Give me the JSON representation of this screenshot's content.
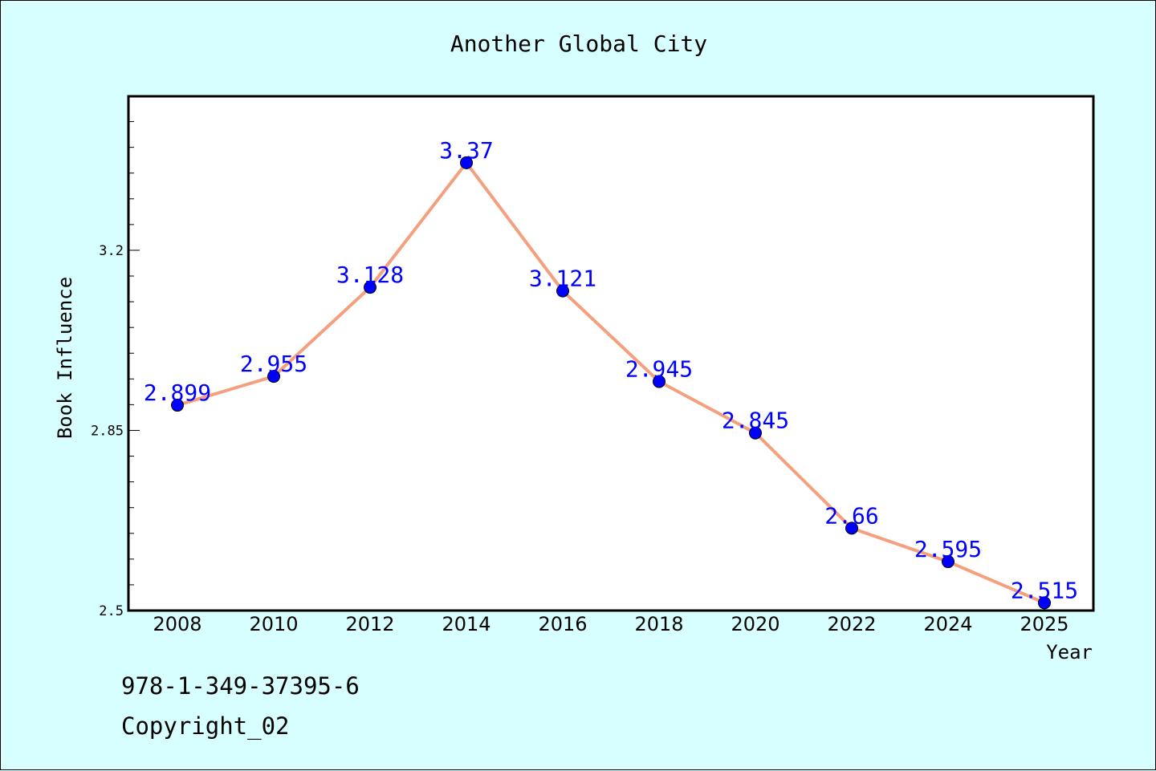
{
  "chart_data": {
    "type": "line",
    "title": "Another Global City",
    "xlabel": "Year",
    "ylabel": "Book Influence",
    "categories": [
      "2008",
      "2010",
      "2012",
      "2014",
      "2016",
      "2018",
      "2020",
      "2022",
      "2024",
      "2025"
    ],
    "series": [
      {
        "values": [
          2.899,
          2.955,
          3.128,
          3.37,
          3.121,
          2.945,
          2.845,
          2.66,
          2.595,
          2.515
        ]
      }
    ],
    "data_labels": [
      "2.899",
      "2.955",
      "3.128",
      "3.37",
      "3.121",
      "2.945",
      "2.845",
      "2.66",
      "2.595",
      "2.515"
    ],
    "y_ticks": [
      2.5,
      2.85,
      3.2
    ],
    "y_tick_labels": [
      "2.5",
      "2.85",
      "3.2"
    ],
    "ylim": [
      2.5,
      3.5
    ],
    "grid": false,
    "colors": {
      "background": "#d8ffff",
      "plot_bg": "#ffffff",
      "line": "#f4a07e",
      "marker": "#0000ff",
      "label": "#0000ff"
    }
  },
  "footer": {
    "isbn": "978-1-349-37395-6",
    "copyright": "Copyright_02"
  }
}
